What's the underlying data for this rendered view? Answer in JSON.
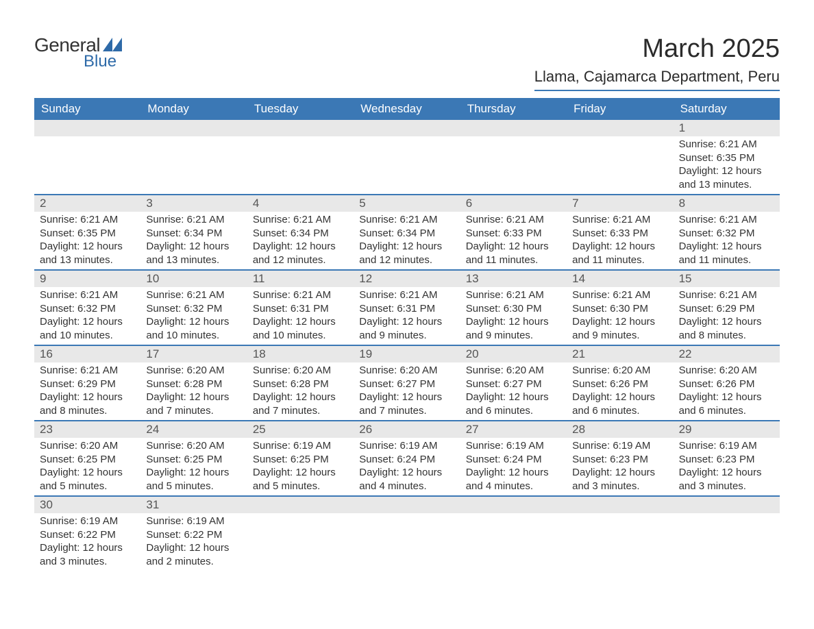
{
  "logo": {
    "general": "General",
    "blue": "Blue",
    "glyph_color": "#2e6aa8"
  },
  "header": {
    "title": "March 2025",
    "subtitle": "Llama, Cajamarca Department, Peru"
  },
  "colors": {
    "header_bg": "#3b78b5",
    "header_text": "#ffffff",
    "daynum_bg": "#e8e8e8",
    "divider": "#3b78b5",
    "body_text": "#333333",
    "page_bg": "#ffffff"
  },
  "day_names": [
    "Sunday",
    "Monday",
    "Tuesday",
    "Wednesday",
    "Thursday",
    "Friday",
    "Saturday"
  ],
  "layout": {
    "columns": 7,
    "rows": 6,
    "type": "calendar-table",
    "font_family": "Arial",
    "daynum_fontsize": 17,
    "info_fontsize": 15,
    "title_fontsize": 38,
    "subtitle_fontsize": 22
  },
  "weeks": [
    [
      null,
      null,
      null,
      null,
      null,
      null,
      {
        "d": "1",
        "sunrise": "6:21 AM",
        "sunset": "6:35 PM",
        "daylight": "12 hours and 13 minutes."
      }
    ],
    [
      {
        "d": "2",
        "sunrise": "6:21 AM",
        "sunset": "6:35 PM",
        "daylight": "12 hours and 13 minutes."
      },
      {
        "d": "3",
        "sunrise": "6:21 AM",
        "sunset": "6:34 PM",
        "daylight": "12 hours and 13 minutes."
      },
      {
        "d": "4",
        "sunrise": "6:21 AM",
        "sunset": "6:34 PM",
        "daylight": "12 hours and 12 minutes."
      },
      {
        "d": "5",
        "sunrise": "6:21 AM",
        "sunset": "6:34 PM",
        "daylight": "12 hours and 12 minutes."
      },
      {
        "d": "6",
        "sunrise": "6:21 AM",
        "sunset": "6:33 PM",
        "daylight": "12 hours and 11 minutes."
      },
      {
        "d": "7",
        "sunrise": "6:21 AM",
        "sunset": "6:33 PM",
        "daylight": "12 hours and 11 minutes."
      },
      {
        "d": "8",
        "sunrise": "6:21 AM",
        "sunset": "6:32 PM",
        "daylight": "12 hours and 11 minutes."
      }
    ],
    [
      {
        "d": "9",
        "sunrise": "6:21 AM",
        "sunset": "6:32 PM",
        "daylight": "12 hours and 10 minutes."
      },
      {
        "d": "10",
        "sunrise": "6:21 AM",
        "sunset": "6:32 PM",
        "daylight": "12 hours and 10 minutes."
      },
      {
        "d": "11",
        "sunrise": "6:21 AM",
        "sunset": "6:31 PM",
        "daylight": "12 hours and 10 minutes."
      },
      {
        "d": "12",
        "sunrise": "6:21 AM",
        "sunset": "6:31 PM",
        "daylight": "12 hours and 9 minutes."
      },
      {
        "d": "13",
        "sunrise": "6:21 AM",
        "sunset": "6:30 PM",
        "daylight": "12 hours and 9 minutes."
      },
      {
        "d": "14",
        "sunrise": "6:21 AM",
        "sunset": "6:30 PM",
        "daylight": "12 hours and 9 minutes."
      },
      {
        "d": "15",
        "sunrise": "6:21 AM",
        "sunset": "6:29 PM",
        "daylight": "12 hours and 8 minutes."
      }
    ],
    [
      {
        "d": "16",
        "sunrise": "6:21 AM",
        "sunset": "6:29 PM",
        "daylight": "12 hours and 8 minutes."
      },
      {
        "d": "17",
        "sunrise": "6:20 AM",
        "sunset": "6:28 PM",
        "daylight": "12 hours and 7 minutes."
      },
      {
        "d": "18",
        "sunrise": "6:20 AM",
        "sunset": "6:28 PM",
        "daylight": "12 hours and 7 minutes."
      },
      {
        "d": "19",
        "sunrise": "6:20 AM",
        "sunset": "6:27 PM",
        "daylight": "12 hours and 7 minutes."
      },
      {
        "d": "20",
        "sunrise": "6:20 AM",
        "sunset": "6:27 PM",
        "daylight": "12 hours and 6 minutes."
      },
      {
        "d": "21",
        "sunrise": "6:20 AM",
        "sunset": "6:26 PM",
        "daylight": "12 hours and 6 minutes."
      },
      {
        "d": "22",
        "sunrise": "6:20 AM",
        "sunset": "6:26 PM",
        "daylight": "12 hours and 6 minutes."
      }
    ],
    [
      {
        "d": "23",
        "sunrise": "6:20 AM",
        "sunset": "6:25 PM",
        "daylight": "12 hours and 5 minutes."
      },
      {
        "d": "24",
        "sunrise": "6:20 AM",
        "sunset": "6:25 PM",
        "daylight": "12 hours and 5 minutes."
      },
      {
        "d": "25",
        "sunrise": "6:19 AM",
        "sunset": "6:25 PM",
        "daylight": "12 hours and 5 minutes."
      },
      {
        "d": "26",
        "sunrise": "6:19 AM",
        "sunset": "6:24 PM",
        "daylight": "12 hours and 4 minutes."
      },
      {
        "d": "27",
        "sunrise": "6:19 AM",
        "sunset": "6:24 PM",
        "daylight": "12 hours and 4 minutes."
      },
      {
        "d": "28",
        "sunrise": "6:19 AM",
        "sunset": "6:23 PM",
        "daylight": "12 hours and 3 minutes."
      },
      {
        "d": "29",
        "sunrise": "6:19 AM",
        "sunset": "6:23 PM",
        "daylight": "12 hours and 3 minutes."
      }
    ],
    [
      {
        "d": "30",
        "sunrise": "6:19 AM",
        "sunset": "6:22 PM",
        "daylight": "12 hours and 3 minutes."
      },
      {
        "d": "31",
        "sunrise": "6:19 AM",
        "sunset": "6:22 PM",
        "daylight": "12 hours and 2 minutes."
      },
      null,
      null,
      null,
      null,
      null
    ]
  ],
  "labels": {
    "sunrise_prefix": "Sunrise: ",
    "sunset_prefix": "Sunset: ",
    "daylight_prefix": "Daylight: "
  }
}
